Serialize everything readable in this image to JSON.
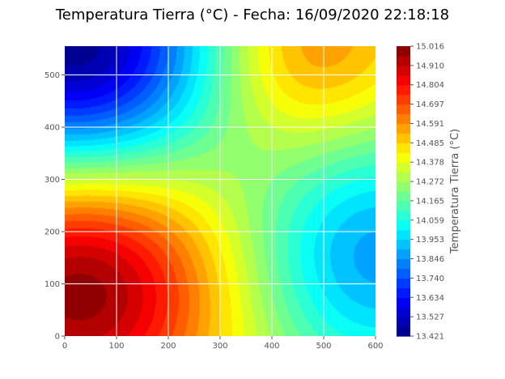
{
  "chart_data": {
    "type": "heatmap",
    "subtype": "filled-contour",
    "title": "Temperatura Tierra (°C) - Fecha: 16/09/2020 22:18:18",
    "xlabel": "",
    "ylabel": "",
    "xlim": [
      0,
      600
    ],
    "ylim": [
      0,
      555
    ],
    "x_ticks": [
      "0",
      "100",
      "200",
      "300",
      "400",
      "500",
      "600"
    ],
    "y_ticks": [
      "0",
      "100",
      "200",
      "300",
      "400",
      "500"
    ],
    "grid": true,
    "colormap": "jet",
    "colorbar": {
      "label": "Temperatura Tierra (°C)",
      "min": 13.421,
      "max": 15.016,
      "levels": 30,
      "tick_labels": [
        "13.421",
        "13.527",
        "13.634",
        "13.740",
        "13.846",
        "13.953",
        "14.059",
        "14.165",
        "14.272",
        "14.378",
        "14.485",
        "14.591",
        "14.697",
        "14.804",
        "14.910",
        "15.016"
      ]
    },
    "features": [
      {
        "kind": "max",
        "x": 30,
        "y": 115,
        "value": 15.016
      },
      {
        "kind": "min",
        "x": 20,
        "y": 540,
        "value": 13.421
      },
      {
        "kind": "local-min",
        "x": 590,
        "y": 155,
        "value": 13.9
      },
      {
        "kind": "local-max",
        "x": 470,
        "y": 540,
        "value": 14.62
      }
    ]
  }
}
